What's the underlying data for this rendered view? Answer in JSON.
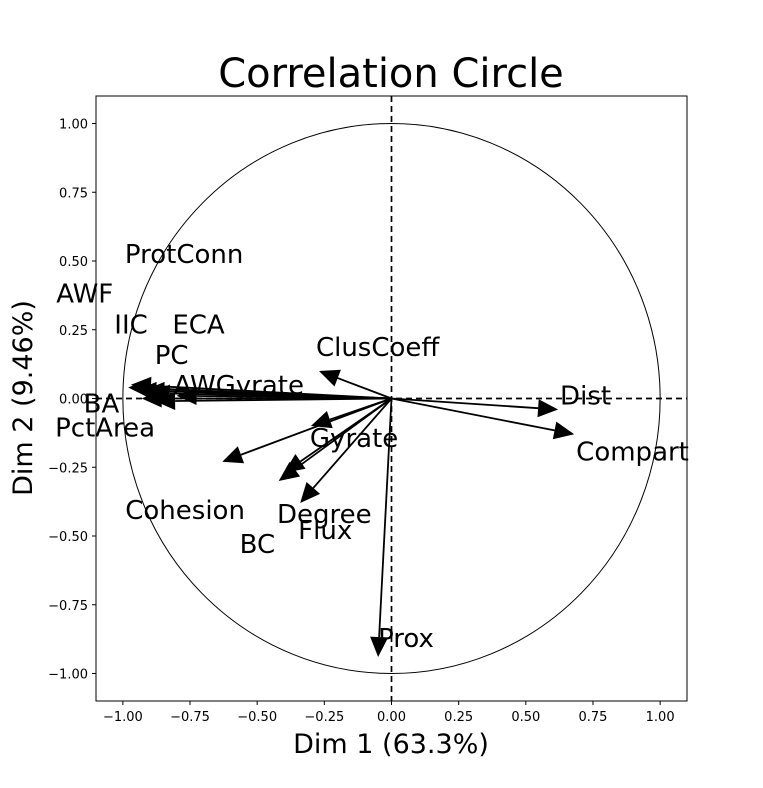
{
  "chart_data": {
    "type": "scatter",
    "title": "Correlation Circle",
    "xlabel": "Dim 1 (63.3%)",
    "ylabel": "Dim 2 (9.46%)",
    "xlim": [
      -1.1,
      1.1
    ],
    "ylim": [
      -1.1,
      1.1
    ],
    "xticks": [
      "−1.00",
      "−0.75",
      "−0.50",
      "−0.25",
      "0.00",
      "0.25",
      "0.50",
      "0.75",
      "1.00"
    ],
    "yticks": [
      "−1.00",
      "−0.75",
      "−0.50",
      "−0.25",
      "0.00",
      "0.25",
      "0.50",
      "0.75",
      "1.00"
    ],
    "grid": false,
    "unit_circle": true,
    "reference_lines": "dashed at x=0 and y=0",
    "vectors": [
      {
        "label": "ProtConn",
        "x": -0.97,
        "y": 0.05
      },
      {
        "label": "AWF",
        "x": -0.98,
        "y": 0.04
      },
      {
        "label": "IIC",
        "x": -0.95,
        "y": 0.03
      },
      {
        "label": "ECA",
        "x": -0.92,
        "y": 0.03
      },
      {
        "label": "PC",
        "x": -0.9,
        "y": 0.02
      },
      {
        "label": "AWGyrate",
        "x": -0.8,
        "y": 0.01
      },
      {
        "label": "BA",
        "x": -0.93,
        "y": 0.0
      },
      {
        "label": "PctArea",
        "x": -0.88,
        "y": -0.01
      },
      {
        "label": "Cohesion",
        "x": -0.63,
        "y": -0.23
      },
      {
        "label": "BC",
        "x": -0.42,
        "y": -0.3
      },
      {
        "label": "Degree",
        "x": -0.4,
        "y": -0.27
      },
      {
        "label": "Gyrate",
        "x": -0.3,
        "y": -0.1
      },
      {
        "label": "Flux",
        "x": -0.34,
        "y": -0.38
      },
      {
        "label": "ClusCoeff",
        "x": -0.27,
        "y": 0.1
      },
      {
        "label": "Dist",
        "x": 0.62,
        "y": -0.04
      },
      {
        "label": "Compart",
        "x": 0.68,
        "y": -0.13
      },
      {
        "label": "Prox",
        "x": -0.05,
        "y": -0.94
      }
    ]
  }
}
